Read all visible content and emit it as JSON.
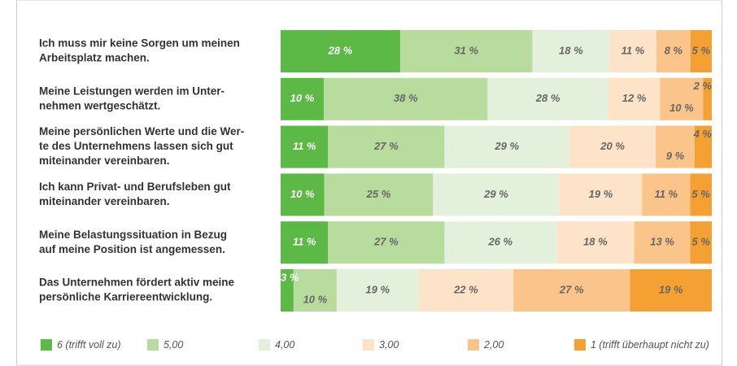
{
  "chart_data": {
    "type": "stacked-bar",
    "categories": [
      [
        "Ich muss mir keine Sorgen um meinen",
        "Arbeitsplatz machen."
      ],
      [
        "Meine Leistungen werden im Unter-",
        "nehmen wertgeschätzt."
      ],
      [
        "Meine persönlichen Werte und die Wer-",
        "te des Unternehmens lassen sich gut",
        "miteinander vereinbaren."
      ],
      [
        "Ich kann Privat- und Berufsleben gut",
        "miteinander vereinbaren."
      ],
      [
        "Meine Belastungssituation in Bezug",
        "auf meine Position ist angemessen."
      ],
      [
        "Das Unternehmen fördert aktiv meine",
        "persönliche Karriereentwicklung."
      ]
    ],
    "series": [
      {
        "name": "6 (trifft voll zu)",
        "color": "#5cb946",
        "values": [
          28,
          10,
          11,
          10,
          11,
          3
        ],
        "value_labels": [
          "28 %",
          "10 %",
          "11 %",
          "10 %",
          "11 %",
          "3 %"
        ]
      },
      {
        "name": "5,00",
        "color": "#b7dc9e",
        "values": [
          31,
          38,
          27,
          25,
          27,
          10
        ],
        "value_labels": [
          "31 %",
          "38 %",
          "27 %",
          "25 %",
          "27 %",
          "10 %"
        ]
      },
      {
        "name": "4,00",
        "color": "#e3f1dc",
        "values": [
          18,
          28,
          29,
          29,
          26,
          19
        ],
        "value_labels": [
          "18 %",
          "28 %",
          "29 %",
          "29 %",
          "26 %",
          "19 %"
        ]
      },
      {
        "name": "3,00",
        "color": "#fde3c8",
        "values": [
          11,
          12,
          20,
          19,
          18,
          22
        ],
        "value_labels": [
          "11 %",
          "12 %",
          "20 %",
          "19 %",
          "18 %",
          "22 %"
        ]
      },
      {
        "name": "2,00",
        "color": "#fbc48b",
        "values": [
          8,
          10,
          9,
          11,
          13,
          27
        ],
        "value_labels": [
          "8 %",
          "10 %",
          "9 %",
          "11 %",
          "13 %",
          "27 %"
        ]
      },
      {
        "name": "1 (trifft überhaupt nicht zu)",
        "color": "#f5a033",
        "values": [
          5,
          2,
          4,
          5,
          5,
          19
        ],
        "value_labels": [
          "5 %",
          "2 %",
          "4 %",
          "5 %",
          "5 %",
          "19 %"
        ]
      }
    ]
  }
}
